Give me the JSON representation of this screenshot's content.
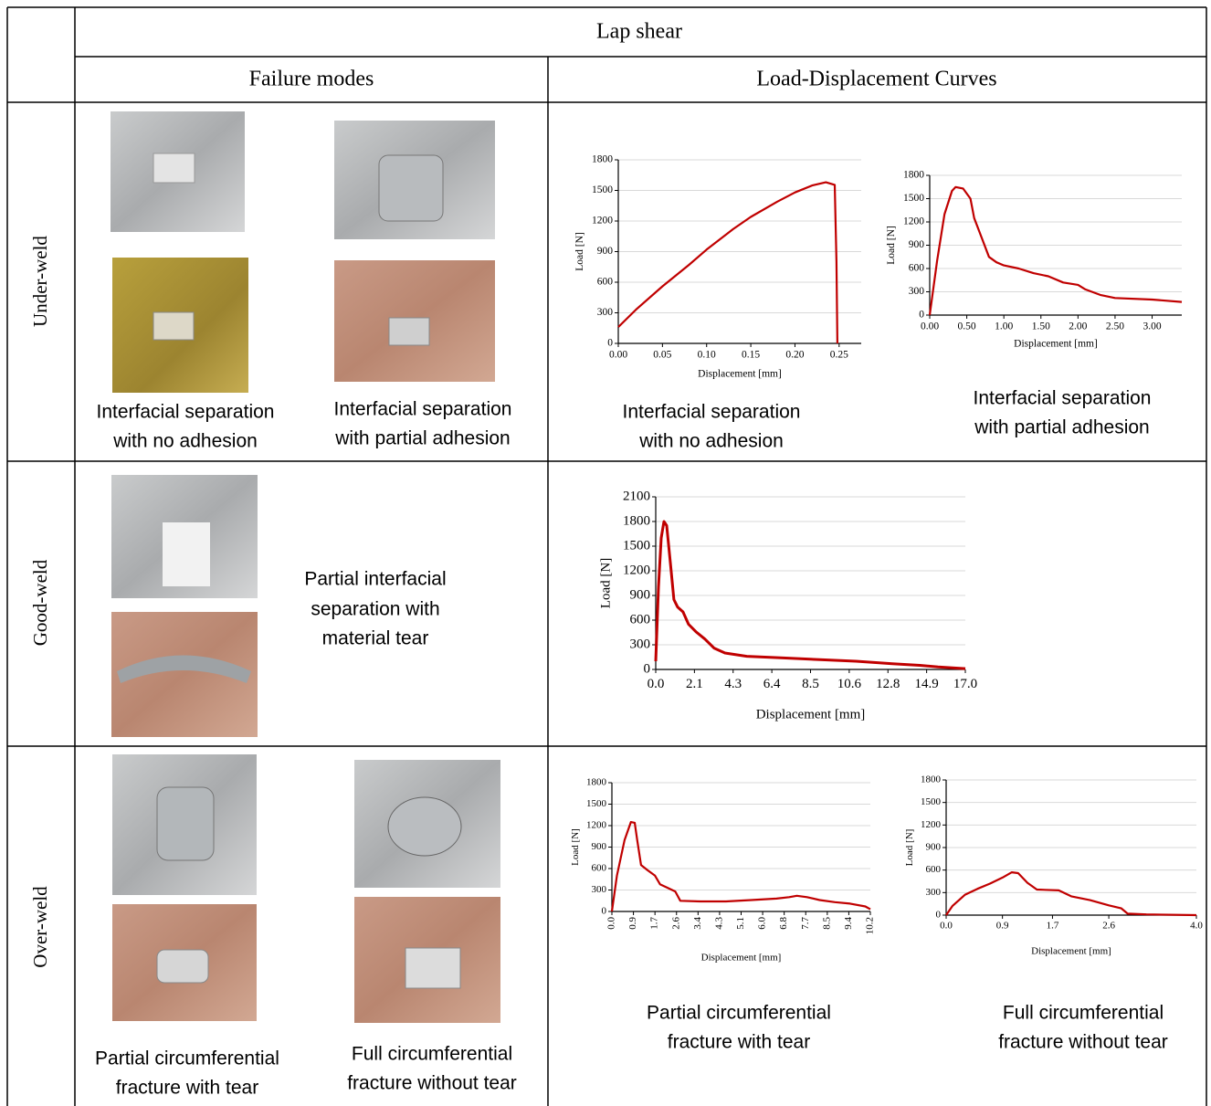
{
  "table": {
    "title": "Lap shear",
    "columns": [
      "Failure modes",
      "Load-Displacement Curves"
    ],
    "rows": [
      {
        "label": "Under-weld",
        "photo_captions": [
          [
            "Interfacial separation",
            "with no adhesion"
          ],
          [
            "Interfacial separation",
            "with partial adhesion"
          ]
        ],
        "charts": [
          {
            "type": "line",
            "xlabel": "Displacement [mm]",
            "ylabel": "Load [N]",
            "grid": true,
            "xlim": [
              0,
              0.275
            ],
            "ylim": [
              0,
              1800
            ],
            "xticks": [
              {
                "value": 0,
                "label": "0.00"
              },
              {
                "value": 0.05,
                "label": "0.05"
              },
              {
                "value": 0.1,
                "label": "0.10"
              },
              {
                "value": 0.15,
                "label": "0.15"
              },
              {
                "value": 0.2,
                "label": "0.20"
              },
              {
                "value": 0.25,
                "label": "0.25"
              }
            ],
            "yticks": [
              0,
              300,
              600,
              900,
              1200,
              1500,
              1800
            ],
            "series": [
              {
                "color": "#c00000",
                "x": [
                  0,
                  0.02,
                  0.05,
                  0.08,
                  0.1,
                  0.13,
                  0.15,
                  0.18,
                  0.2,
                  0.22,
                  0.235,
                  0.245,
                  0.247,
                  0.248
                ],
                "values": [
                  160,
                  330,
                  560,
                  770,
                  920,
                  1120,
                  1240,
                  1390,
                  1480,
                  1550,
                  1580,
                  1555,
                  800,
                  0
                ]
              }
            ],
            "caption": [
              "Interfacial separation",
              "with no adhesion"
            ]
          },
          {
            "type": "line",
            "xlabel": "Displacement [mm]",
            "ylabel": "Load [N]",
            "grid": true,
            "xlim": [
              0,
              3.4
            ],
            "ylim": [
              0,
              1800
            ],
            "xticks": [
              {
                "value": 0,
                "label": "0.00"
              },
              {
                "value": 0.5,
                "label": "0.50"
              },
              {
                "value": 1,
                "label": "1.00"
              },
              {
                "value": 1.5,
                "label": "1.50"
              },
              {
                "value": 2,
                "label": "2.00"
              },
              {
                "value": 2.5,
                "label": "2.50"
              },
              {
                "value": 3,
                "label": "3.00"
              }
            ],
            "yticks": [
              0,
              300,
              600,
              900,
              1200,
              1500,
              1800
            ],
            "series": [
              {
                "color": "#c00000",
                "x": [
                  0,
                  0.1,
                  0.2,
                  0.3,
                  0.35,
                  0.45,
                  0.55,
                  0.6,
                  0.7,
                  0.8,
                  0.9,
                  1.0,
                  1.2,
                  1.4,
                  1.6,
                  1.8,
                  2.0,
                  2.1,
                  2.3,
                  2.5,
                  3.0,
                  3.4
                ],
                "values": [
                  0,
                  700,
                  1300,
                  1600,
                  1650,
                  1630,
                  1500,
                  1250,
                  1000,
                  750,
                  680,
                  640,
                  600,
                  540,
                  500,
                  420,
                  390,
                  330,
                  260,
                  220,
                  200,
                  170
                ]
              }
            ],
            "caption": [
              "Interfacial separation",
              "with partial adhesion"
            ]
          }
        ]
      },
      {
        "label": "Good-weld",
        "photo_captions": [
          [
            "Partial interfacial",
            "separation with",
            "material tear"
          ]
        ],
        "charts": [
          {
            "type": "line",
            "xlabel": "Displacement [mm]",
            "ylabel": "Load [N]",
            "grid": true,
            "xlim": [
              0,
              17
            ],
            "ylim": [
              0,
              2100
            ],
            "xticks": [
              {
                "value": 0,
                "label": "0.0"
              },
              {
                "value": 2.125,
                "label": "2.1"
              },
              {
                "value": 4.25,
                "label": "4.3"
              },
              {
                "value": 6.375,
                "label": "6.4"
              },
              {
                "value": 8.5,
                "label": "8.5"
              },
              {
                "value": 10.625,
                "label": "10.6"
              },
              {
                "value": 12.75,
                "label": "12.8"
              },
              {
                "value": 14.875,
                "label": "14.9"
              },
              {
                "value": 17,
                "label": "17.0"
              }
            ],
            "yticks": [
              0,
              300,
              600,
              900,
              1200,
              1500,
              1800,
              2100
            ],
            "series": [
              {
                "color": "#c00000",
                "x": [
                  0,
                  0.15,
                  0.3,
                  0.45,
                  0.6,
                  0.8,
                  1.0,
                  1.2,
                  1.5,
                  1.8,
                  2.2,
                  2.7,
                  3.2,
                  3.8,
                  5,
                  7,
                  9,
                  11,
                  13,
                  14.5,
                  15.5,
                  17
                ],
                "values": [
                  100,
                  1000,
                  1600,
                  1800,
                  1750,
                  1300,
                  850,
                  760,
                  700,
                  550,
                  460,
                  370,
                  260,
                  200,
                  160,
                  140,
                  120,
                  100,
                  70,
                  50,
                  30,
                  10
                ]
              }
            ]
          }
        ]
      },
      {
        "label": "Over-weld",
        "photo_captions": [
          [
            "Partial circumferential",
            "fracture with tear"
          ],
          [
            "Full circumferential",
            "fracture without tear"
          ]
        ],
        "charts": [
          {
            "type": "line",
            "xlabel": "Displacement [mm]",
            "ylabel": "Load [N]",
            "grid": true,
            "xlim": [
              0,
              10.2
            ],
            "ylim": [
              0,
              1800
            ],
            "xticks": [
              {
                "value": 0,
                "label": "0.0"
              },
              {
                "value": 0.85,
                "label": "0.9"
              },
              {
                "value": 1.7,
                "label": "1.7"
              },
              {
                "value": 2.55,
                "label": "2.6"
              },
              {
                "value": 3.4,
                "label": "3.4"
              },
              {
                "value": 4.25,
                "label": "4.3"
              },
              {
                "value": 5.1,
                "label": "5.1"
              },
              {
                "value": 5.95,
                "label": "6.0"
              },
              {
                "value": 6.8,
                "label": "6.8"
              },
              {
                "value": 7.65,
                "label": "7.7"
              },
              {
                "value": 8.5,
                "label": "8.5"
              },
              {
                "value": 9.35,
                "label": "9.4"
              },
              {
                "value": 10.2,
                "label": "10.2"
              }
            ],
            "yticks": [
              0,
              300,
              600,
              900,
              1200,
              1500,
              1800
            ],
            "series": [
              {
                "color": "#c00000",
                "x": [
                  0,
                  0.2,
                  0.5,
                  0.75,
                  0.9,
                  1.0,
                  1.15,
                  1.4,
                  1.7,
                  1.9,
                  2.2,
                  2.5,
                  2.7,
                  3.5,
                  4.5,
                  5.5,
                  6.5,
                  7.0,
                  7.3,
                  7.7,
                  8.2,
                  8.8,
                  9.4,
                  10.0,
                  10.2
                ],
                "values": [
                  0,
                  500,
                  1000,
                  1250,
                  1240,
                  1000,
                  650,
                  580,
                  500,
                  380,
                  330,
                  280,
                  150,
                  140,
                  140,
                  160,
                  180,
                  200,
                  220,
                  200,
                  160,
                  130,
                  110,
                  70,
                  30
                ]
              }
            ],
            "caption": [
              "Partial circumferential",
              "fracture with tear"
            ]
          },
          {
            "type": "line",
            "xlabel": "Displacement [mm]",
            "ylabel": "Load [N]",
            "grid": true,
            "xlim": [
              0,
              4
            ],
            "ylim": [
              0,
              1800
            ],
            "xticks": [
              {
                "value": 0,
                "label": "0.0"
              },
              0.9,
              1.7,
              2.6,
              {
                "value": 4,
                "label": "4.0"
              }
            ],
            "yticks": [
              0,
              300,
              600,
              900,
              1200,
              1500,
              1800
            ],
            "series": [
              {
                "color": "#c00000",
                "x": [
                  0,
                  0.1,
                  0.3,
                  0.5,
                  0.7,
                  0.9,
                  1.05,
                  1.15,
                  1.3,
                  1.45,
                  1.8,
                  2.0,
                  2.3,
                  2.6,
                  2.8,
                  2.9,
                  3.2,
                  4.0
                ],
                "values": [
                  0,
                  120,
                  270,
                  350,
                  420,
                  500,
                  570,
                  560,
                  430,
                  340,
                  330,
                  250,
                  200,
                  130,
                  90,
                  20,
                  10,
                  0
                ]
              }
            ],
            "caption": [
              "Full circumferential",
              "fracture without tear"
            ]
          }
        ]
      }
    ]
  }
}
